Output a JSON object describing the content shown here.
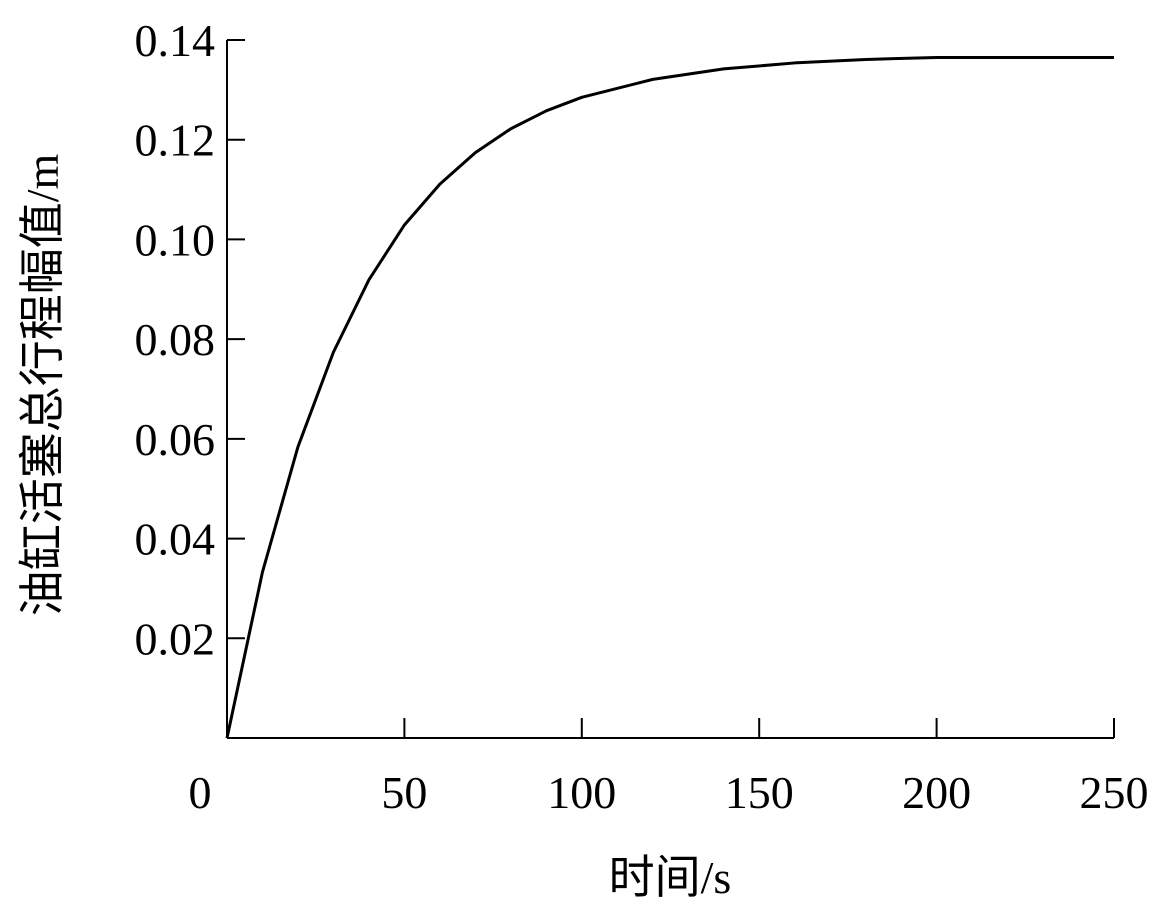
{
  "chart_data": {
    "type": "line",
    "x_label": "时间/s",
    "y_label": "油缸活塞总行程幅值/m",
    "x": [
      0,
      10,
      20,
      30,
      40,
      50,
      60,
      70,
      80,
      90,
      100,
      120,
      140,
      160,
      180,
      200,
      250
    ],
    "series": [
      {
        "color": "#000000",
        "values": [
          0,
          0.0333,
          0.0584,
          0.0774,
          0.0919,
          0.1029,
          0.1111,
          0.1174,
          0.1222,
          0.1258,
          0.1285,
          0.1321,
          0.1342,
          0.1354,
          0.1361,
          0.1365,
          0.1365
        ]
      }
    ],
    "xlim": [
      0,
      250
    ],
    "xticks": [
      0,
      50,
      100,
      150,
      200,
      250
    ],
    "ylim": [
      0,
      0.14
    ],
    "yticks": [
      0.02,
      0.04,
      0.06,
      0.08,
      {
        "value": 0.1,
        "label": "0.10"
      },
      0.12,
      0.14
    ],
    "grid": false
  }
}
